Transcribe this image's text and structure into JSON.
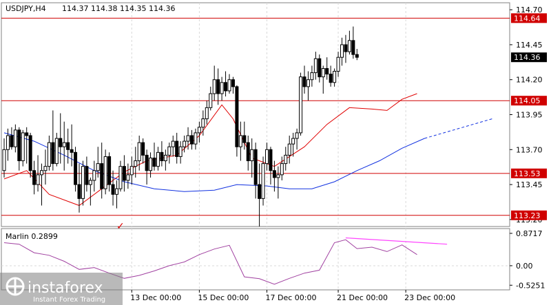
{
  "header": {
    "symbol_line": "USDJPY,H4",
    "ohlc": "114.37 114.38 114.35 114.36"
  },
  "indicator": {
    "label": "Marlin 0.2899"
  },
  "watermark": {
    "brand": "instaforex",
    "tagline": "Instant Forex Trading"
  },
  "marker": {
    "glyph": "✓",
    "color": "#e00000"
  },
  "colors": {
    "bull_candle": "#ffffff",
    "bear_candle": "#000000",
    "upper_envelope": "#e00000",
    "lower_envelope": "#e00000",
    "moving_average": "#1030e0",
    "levels": "#d00000",
    "indicator_line": "#a040a0",
    "divergence_line": "#ff44ff",
    "current_price_bg": "#000000"
  },
  "chart_data": {
    "type": "candlestick",
    "price_axis": {
      "ticks": [
        "114.70",
        "114.45",
        "114.20",
        "113.95",
        "113.70",
        "113.45",
        "113.20"
      ],
      "range": [
        113.15,
        114.75
      ]
    },
    "current_price": "114.36",
    "levels": [
      {
        "value": 114.64,
        "label": "114.64"
      },
      {
        "value": 114.05,
        "label": "114.05"
      },
      {
        "value": 113.53,
        "label": "113.53"
      },
      {
        "value": 113.23,
        "label": "113.23"
      }
    ],
    "x_labels": [
      {
        "bar": 34,
        "label": "13 Dec 00:00"
      },
      {
        "bar": 52,
        "label": "15 Dec 00:00"
      },
      {
        "bar": 70,
        "label": "17 Dec 00:00"
      },
      {
        "bar": 89,
        "label": "21 Dec 00:00"
      },
      {
        "bar": 107,
        "label": "23 Dec 00:00"
      }
    ],
    "candles": [
      [
        113.55,
        113.78,
        113.5,
        113.7
      ],
      [
        113.7,
        113.85,
        113.62,
        113.8
      ],
      [
        113.8,
        113.86,
        113.7,
        113.72
      ],
      [
        113.72,
        113.88,
        113.68,
        113.84
      ],
      [
        113.84,
        113.86,
        113.55,
        113.62
      ],
      [
        113.62,
        113.84,
        113.58,
        113.82
      ],
      [
        113.82,
        113.86,
        113.6,
        113.8
      ],
      [
        113.8,
        113.82,
        113.5,
        113.55
      ],
      [
        113.55,
        113.62,
        113.38,
        113.45
      ],
      [
        113.45,
        113.66,
        113.4,
        113.52
      ],
      [
        113.52,
        113.6,
        113.3,
        113.55
      ],
      [
        113.55,
        113.7,
        113.45,
        113.58
      ],
      [
        113.58,
        113.8,
        113.55,
        113.75
      ],
      [
        113.75,
        113.98,
        113.55,
        113.6
      ],
      [
        113.6,
        113.82,
        113.58,
        113.78
      ],
      [
        113.78,
        113.96,
        113.6,
        113.72
      ],
      [
        113.72,
        113.9,
        113.55,
        113.75
      ],
      [
        113.75,
        113.85,
        113.6,
        113.7
      ],
      [
        113.7,
        113.88,
        113.58,
        113.68
      ],
      [
        113.68,
        113.72,
        113.4,
        113.45
      ],
      [
        113.45,
        113.6,
        113.25,
        113.35
      ],
      [
        113.35,
        113.62,
        113.3,
        113.58
      ],
      [
        113.58,
        113.65,
        113.4,
        113.45
      ],
      [
        113.45,
        113.5,
        113.3,
        113.48
      ],
      [
        113.48,
        113.62,
        113.4,
        113.55
      ],
      [
        113.55,
        113.72,
        113.5,
        113.6
      ],
      [
        113.6,
        113.75,
        113.35,
        113.42
      ],
      [
        113.42,
        113.7,
        113.38,
        113.65
      ],
      [
        113.65,
        113.68,
        113.4,
        113.45
      ],
      [
        113.45,
        113.55,
        113.3,
        113.38
      ],
      [
        113.38,
        113.48,
        113.28,
        113.42
      ],
      [
        113.42,
        113.62,
        113.4,
        113.58
      ],
      [
        113.58,
        113.66,
        113.4,
        113.48
      ],
      [
        113.48,
        113.6,
        113.42,
        113.52
      ],
      [
        113.52,
        113.65,
        113.45,
        113.58
      ],
      [
        113.58,
        113.72,
        113.5,
        113.62
      ],
      [
        113.62,
        113.8,
        113.55,
        113.75
      ],
      [
        113.75,
        113.78,
        113.6,
        113.66
      ],
      [
        113.66,
        113.7,
        113.45,
        113.55
      ],
      [
        113.55,
        113.68,
        113.5,
        113.64
      ],
      [
        113.64,
        113.75,
        113.55,
        113.58
      ],
      [
        113.58,
        113.72,
        113.55,
        113.68
      ],
      [
        113.68,
        113.76,
        113.58,
        113.62
      ],
      [
        113.62,
        113.7,
        113.55,
        113.66
      ],
      [
        113.66,
        113.75,
        113.6,
        113.72
      ],
      [
        113.72,
        113.8,
        113.65,
        113.76
      ],
      [
        113.76,
        113.82,
        113.6,
        113.65
      ],
      [
        113.65,
        113.76,
        113.6,
        113.72
      ],
      [
        113.72,
        113.8,
        113.68,
        113.76
      ],
      [
        113.76,
        113.86,
        113.7,
        113.8
      ],
      [
        113.8,
        113.84,
        113.7,
        113.74
      ],
      [
        113.74,
        113.85,
        113.7,
        113.82
      ],
      [
        113.82,
        113.9,
        113.75,
        113.86
      ],
      [
        113.86,
        113.98,
        113.8,
        113.92
      ],
      [
        113.92,
        114.05,
        113.88,
        114.0
      ],
      [
        114.0,
        114.15,
        113.98,
        114.1
      ],
      [
        114.1,
        114.3,
        114.05,
        114.2
      ],
      [
        114.2,
        114.28,
        114.02,
        114.1
      ],
      [
        114.1,
        114.22,
        114.05,
        114.18
      ],
      [
        114.18,
        114.26,
        114.08,
        114.12
      ],
      [
        114.12,
        114.24,
        114.1,
        114.2
      ],
      [
        114.2,
        114.22,
        114.1,
        114.15
      ],
      [
        114.15,
        114.16,
        113.65,
        113.72
      ],
      [
        113.72,
        113.9,
        113.62,
        113.8
      ],
      [
        113.8,
        113.9,
        113.7,
        113.75
      ],
      [
        113.75,
        113.8,
        113.55,
        113.62
      ],
      [
        113.62,
        113.78,
        113.5,
        113.7
      ],
      [
        113.7,
        113.75,
        113.35,
        113.45
      ],
      [
        113.45,
        113.6,
        113.15,
        113.35
      ],
      [
        113.35,
        113.65,
        113.3,
        113.6
      ],
      [
        113.6,
        113.75,
        113.55,
        113.7
      ],
      [
        113.7,
        113.72,
        113.45,
        113.55
      ],
      [
        113.55,
        113.62,
        113.4,
        113.5
      ],
      [
        113.5,
        113.58,
        113.35,
        113.52
      ],
      [
        113.52,
        113.65,
        113.48,
        113.6
      ],
      [
        113.6,
        113.72,
        113.55,
        113.66
      ],
      [
        113.66,
        113.8,
        113.6,
        113.74
      ],
      [
        113.74,
        113.82,
        113.65,
        113.78
      ],
      [
        113.78,
        113.85,
        113.7,
        113.82
      ],
      [
        113.82,
        114.25,
        113.8,
        114.22
      ],
      [
        114.22,
        114.3,
        114.1,
        114.15
      ],
      [
        114.15,
        114.26,
        114.05,
        114.2
      ],
      [
        114.2,
        114.3,
        114.15,
        114.25
      ],
      [
        114.25,
        114.4,
        114.2,
        114.35
      ],
      [
        114.35,
        114.38,
        114.18,
        114.22
      ],
      [
        114.22,
        114.3,
        114.1,
        114.28
      ],
      [
        114.28,
        114.36,
        114.2,
        114.24
      ],
      [
        114.24,
        114.3,
        114.15,
        114.18
      ],
      [
        114.18,
        114.28,
        114.15,
        114.26
      ],
      [
        114.26,
        114.4,
        114.22,
        114.36
      ],
      [
        114.36,
        114.5,
        114.3,
        114.45
      ],
      [
        114.45,
        114.52,
        114.32,
        114.4
      ],
      [
        114.4,
        114.55,
        114.38,
        114.48
      ],
      [
        114.48,
        114.58,
        114.35,
        114.38
      ],
      [
        114.38,
        114.42,
        114.34,
        114.36
      ]
    ],
    "envelope_upper": [
      [
        0,
        113.49
      ],
      [
        6,
        113.55
      ],
      [
        12,
        113.38
      ],
      [
        20,
        113.3
      ],
      [
        26,
        113.42
      ],
      [
        32,
        113.54
      ],
      [
        38,
        113.62
      ],
      [
        46,
        113.66
      ],
      [
        52,
        113.8
      ],
      [
        58,
        114.02
      ],
      [
        61,
        113.92
      ],
      [
        66,
        113.64
      ],
      [
        72,
        113.58
      ],
      [
        80,
        113.72
      ],
      [
        86,
        113.88
      ],
      [
        92,
        114.0
      ],
      [
        98,
        113.99
      ],
      [
        102,
        113.98
      ],
      [
        106,
        114.06
      ],
      [
        110,
        114.1
      ]
    ],
    "moving_average": [
      [
        0,
        113.82
      ],
      [
        8,
        113.76
      ],
      [
        16,
        113.66
      ],
      [
        24,
        113.55
      ],
      [
        32,
        113.47
      ],
      [
        40,
        113.42
      ],
      [
        48,
        113.4
      ],
      [
        56,
        113.41
      ],
      [
        62,
        113.45
      ],
      [
        70,
        113.44
      ],
      [
        76,
        113.42
      ],
      [
        82,
        113.42
      ],
      [
        88,
        113.47
      ],
      [
        94,
        113.55
      ],
      [
        100,
        113.62
      ],
      [
        106,
        113.71
      ],
      [
        112,
        113.78
      ]
    ],
    "moving_average_projection": [
      [
        112,
        113.78
      ],
      [
        130,
        113.92
      ]
    ],
    "indicator": {
      "ticks": [
        "0.8717",
        "0.00",
        "-0.5251"
      ],
      "range": [
        -0.65,
        1.0
      ],
      "values": [
        [
          0,
          0.62
        ],
        [
          4,
          0.58
        ],
        [
          8,
          0.35
        ],
        [
          12,
          0.28
        ],
        [
          16,
          0.12
        ],
        [
          20,
          -0.1
        ],
        [
          24,
          -0.05
        ],
        [
          28,
          -0.2
        ],
        [
          32,
          -0.34
        ],
        [
          36,
          -0.26
        ],
        [
          40,
          -0.14
        ],
        [
          44,
          0.0
        ],
        [
          48,
          0.1
        ],
        [
          52,
          0.3
        ],
        [
          56,
          0.45
        ],
        [
          60,
          0.55
        ],
        [
          64,
          -0.3
        ],
        [
          68,
          -0.35
        ],
        [
          72,
          -0.5
        ],
        [
          76,
          -0.34
        ],
        [
          80,
          -0.2
        ],
        [
          84,
          -0.12
        ],
        [
          88,
          0.62
        ],
        [
          91,
          0.7
        ],
        [
          94,
          0.46
        ],
        [
          98,
          0.5
        ],
        [
          102,
          0.38
        ],
        [
          106,
          0.56
        ],
        [
          110,
          0.3
        ]
      ],
      "divergence": [
        [
          91,
          0.75
        ],
        [
          118,
          0.58
        ]
      ]
    }
  }
}
